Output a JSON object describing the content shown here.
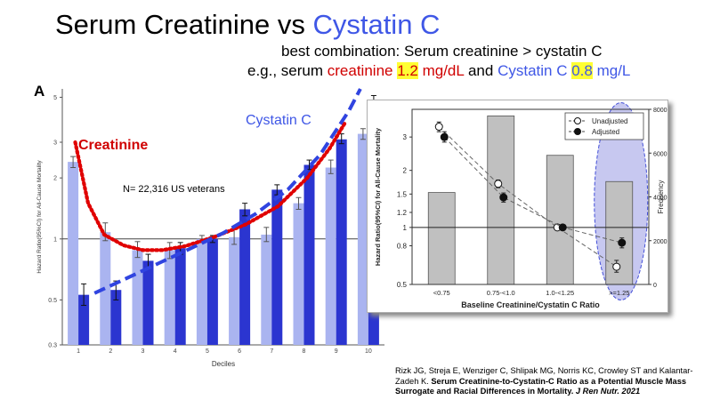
{
  "slide": {
    "title_part1": "Serum Creatinine vs ",
    "title_part2": "Cystatin C",
    "subtitle1": "best combination:  Serum creatinine > cystatin C",
    "subtitle2": {
      "prefix": "e.g., serum ",
      "creat_word": "creatinine",
      "creat_value": "1.2",
      "creat_unit": "mg/dL",
      "and": "and",
      "cys_word": "Cystatin C",
      "cys_value": "0.8",
      "cys_unit": "mg/L"
    },
    "citation": {
      "authors": "Rizk JG, Streja E, Wenziger C, Shlipak MG, Norris  KC, Crowley ST and Kalantar-Zadeh K.",
      "title": "Serum Creatinine-to-Cystatin-C Ratio as a Potential Muscle Mass Surrogate and Racial Differences in Mortality.",
      "journal": "J Ren Nutr. 2021"
    },
    "colors": {
      "blue_text": "#3f57e6",
      "red_text": "#d00000",
      "highlight": "#ffff33"
    }
  },
  "chart_data": [
    {
      "type": "bar",
      "panel_label": "A",
      "xlabel": "Deciles",
      "ylabel": "Hazard Ratio(95%CI) for All-Cause Mortality",
      "categories": [
        "1",
        "2",
        "3",
        "4",
        "5",
        "6",
        "7",
        "8",
        "9",
        "10"
      ],
      "yscale": "log",
      "ylim": [
        0.3,
        5.5
      ],
      "yticks": [
        {
          "value": 0.3,
          "label": "0.3"
        },
        {
          "value": 0.5,
          "label": "0.5"
        },
        {
          "value": 1,
          "label": "1"
        },
        {
          "value": 2,
          "label": "2"
        },
        {
          "value": 3,
          "label": "3"
        },
        {
          "value": 5,
          "label": "5"
        }
      ],
      "reference_line": 1,
      "series": [
        {
          "color": "#aab4f0",
          "values": [
            2.4,
            1.08,
            0.88,
            0.88,
            1.0,
            1.02,
            1.05,
            1.5,
            2.25,
            3.3
          ],
          "ci_high": [
            2.55,
            1.2,
            0.97,
            0.96,
            1.04,
            1.12,
            1.14,
            1.6,
            2.45,
            3.5
          ],
          "ci_low": [
            2.25,
            0.98,
            0.81,
            0.8,
            0.96,
            0.94,
            0.97,
            1.4,
            2.1,
            3.1
          ]
        },
        {
          "color": "#2b35d0",
          "values": [
            0.53,
            0.56,
            0.78,
            0.9,
            1.0,
            1.4,
            1.75,
            2.32,
            3.1,
            4.8
          ],
          "ci_high": [
            0.6,
            0.62,
            0.84,
            0.96,
            1.04,
            1.5,
            1.85,
            2.45,
            3.3,
            5.1
          ],
          "ci_low": [
            0.47,
            0.5,
            0.72,
            0.84,
            0.96,
            1.3,
            1.65,
            2.2,
            2.95,
            4.5
          ]
        }
      ],
      "annotations": [
        {
          "text": "Creatinine",
          "color": "#d00000"
        },
        {
          "text": "Cystatin C",
          "color": "#3f57e6"
        },
        {
          "text": "N= 22,316 US veterans",
          "color": "#000000"
        }
      ],
      "overlay_curves": [
        {
          "name": "Creatinine",
          "style": "dotted",
          "color": "#e00000",
          "points": [
            [
              0.9,
              3.0
            ],
            [
              1.3,
              1.5
            ],
            [
              1.8,
              1.05
            ],
            [
              2.4,
              0.93
            ],
            [
              3.0,
              0.88
            ],
            [
              3.6,
              0.88
            ],
            [
              4.3,
              0.92
            ],
            [
              5.2,
              1.02
            ],
            [
              6.2,
              1.18
            ],
            [
              7.2,
              1.45
            ],
            [
              8.1,
              2.0
            ],
            [
              8.8,
              2.8
            ],
            [
              9.3,
              3.8
            ]
          ]
        },
        {
          "name": "Cystatin C",
          "style": "dashed",
          "color": "#3044e0",
          "points": [
            [
              1.5,
              0.54
            ],
            [
              2.5,
              0.64
            ],
            [
              3.5,
              0.76
            ],
            [
              4.5,
              0.9
            ],
            [
              5.5,
              1.07
            ],
            [
              6.5,
              1.33
            ],
            [
              7.5,
              1.75
            ],
            [
              8.5,
              2.6
            ],
            [
              9.4,
              4.3
            ],
            [
              9.75,
              5.5
            ]
          ]
        }
      ]
    },
    {
      "type": "bar",
      "xlabel": "Baseline Creatinine/Cystatin C Ratio",
      "ylabel": "Hazard Ratio(95%CI) for All-Cause Mortality",
      "y2label": "Frequency",
      "categories": [
        "<0.75",
        "0.75-<1.0",
        "1.0-<1.25",
        ">=1.25"
      ],
      "frequency": [
        4200,
        7700,
        5900,
        4700
      ],
      "y2lim": [
        0,
        8000
      ],
      "y2ticks": [
        0,
        2000,
        4000,
        6000,
        8000
      ],
      "yscale": "log",
      "ylim": [
        0.5,
        4.2
      ],
      "yticks": [
        {
          "value": 0.5,
          "label": "0.5"
        },
        {
          "value": 0.8,
          "label": "0.8"
        },
        {
          "value": 1,
          "label": "1"
        },
        {
          "value": 1.2,
          "label": "1.2"
        },
        {
          "value": 1.5,
          "label": "1.5"
        },
        {
          "value": 2,
          "label": "2"
        },
        {
          "value": 3,
          "label": "3"
        }
      ],
      "reference_line": 1,
      "series": [
        {
          "name": "Unadjusted",
          "marker": "open",
          "values": [
            3.4,
            1.7,
            1.0,
            0.62
          ],
          "ci_high": [
            3.6,
            1.78,
            1.02,
            0.67
          ],
          "ci_low": [
            3.2,
            1.62,
            0.98,
            0.58
          ]
        },
        {
          "name": "Adjusted",
          "marker": "filled",
          "values": [
            3.0,
            1.44,
            1.0,
            0.83
          ],
          "ci_high": [
            3.2,
            1.52,
            1.02,
            0.88
          ],
          "ci_low": [
            2.82,
            1.36,
            0.98,
            0.78
          ]
        }
      ],
      "legend_position": "top-right",
      "highlight_category": ">=1.25"
    }
  ]
}
